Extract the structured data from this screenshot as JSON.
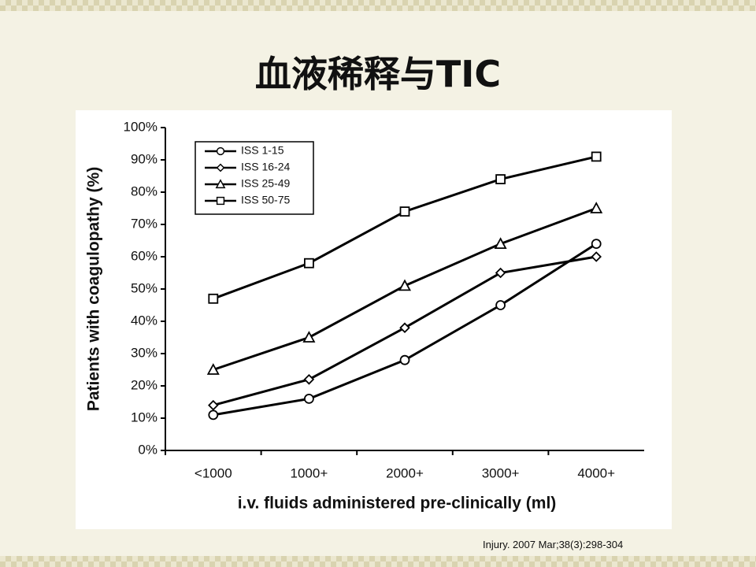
{
  "slide_title": "血液稀释与TIC",
  "citation": "Injury. 2007 Mar;38(3):298-304",
  "chart_data": {
    "type": "line",
    "x_label": "i.v. fluids administered pre-clinically (ml)",
    "y_label": "Patients with coagulopathy (%)",
    "categories": [
      "<1000",
      "1000+",
      "2000+",
      "3000+",
      "4000+"
    ],
    "series": [
      {
        "name": "ISS 1-15",
        "color": "#000000",
        "marker": "circle",
        "values": [
          11,
          16,
          28,
          45,
          64
        ]
      },
      {
        "name": "ISS 16-24",
        "color": "#000000",
        "marker": "diamond",
        "values": [
          14,
          22,
          38,
          55,
          60
        ]
      },
      {
        "name": "ISS 25-49",
        "color": "#000000",
        "marker": "triangle",
        "values": [
          25,
          35,
          51,
          64,
          75
        ]
      },
      {
        "name": "ISS 50-75",
        "color": "#000000",
        "marker": "square",
        "values": [
          47,
          58,
          74,
          84,
          91
        ]
      }
    ],
    "ylim": [
      0,
      100
    ],
    "yticks": [
      {
        "value": 0,
        "label": "0%"
      },
      {
        "value": 10,
        "label": "10%"
      },
      {
        "value": 20,
        "label": "20%"
      },
      {
        "value": 30,
        "label": "30%"
      },
      {
        "value": 40,
        "label": "40%"
      },
      {
        "value": 50,
        "label": "50%"
      },
      {
        "value": 60,
        "label": "60%"
      },
      {
        "value": 70,
        "label": "70%"
      },
      {
        "value": 80,
        "label": "80%"
      },
      {
        "value": 90,
        "label": "90%"
      },
      {
        "value": 100,
        "label": "100%"
      }
    ],
    "legend": "upper left"
  }
}
